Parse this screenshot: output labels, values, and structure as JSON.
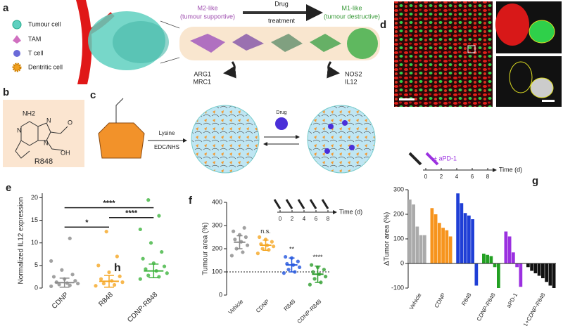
{
  "panels": {
    "letters": [
      "a",
      "b",
      "c",
      "d",
      "e",
      "f",
      "g"
    ],
    "a": {
      "legend": [
        "Tumour cell",
        "TAM",
        "T cell",
        "Dentritic cell"
      ],
      "m2": [
        "M2-like",
        "(tumour supportive)"
      ],
      "drug": [
        "Drug",
        "treatment"
      ],
      "m1": [
        "M1-like",
        "(tumour destructive)"
      ],
      "m2_markers": [
        "ARG1",
        "MRC1"
      ],
      "m1_markers": [
        "NOS2",
        "IL12"
      ]
    },
    "b": {
      "atoms": [
        "NH2",
        "N",
        "N",
        "N",
        "O",
        "OH"
      ],
      "name": "R848"
    },
    "c": {
      "reagents": [
        "Lysine",
        "EDC/NHS"
      ],
      "drug": "Drug"
    }
  },
  "chart_data": [
    {
      "type": "strip",
      "ylabel": "Normalized IL12 expression",
      "categories": [
        "CDNP",
        "R848",
        "CDNP-R848"
      ],
      "colors": [
        "#8a8a8a",
        "#f5a623",
        "#3fb43f"
      ],
      "points": [
        [
          0.4,
          0.6,
          0.8,
          1,
          1.1,
          1.3,
          1.6,
          2,
          2.5,
          3,
          4,
          6,
          11
        ],
        [
          0.5,
          0.7,
          1,
          1.3,
          1.6,
          2,
          2.6,
          3.5,
          5,
          7,
          12.5
        ],
        [
          2,
          2.5,
          2.8,
          3.3,
          3.8,
          4.2,
          4.8,
          5.5,
          6.5,
          8,
          10,
          13,
          16,
          19.5
        ]
      ],
      "values": [
        1.2,
        1.5,
        3.8
      ],
      "errors": [
        1,
        1.3,
        1.5
      ],
      "ylim": [
        0,
        21
      ],
      "yticks": [
        0,
        5,
        10,
        15,
        20
      ],
      "annotations": [
        "****",
        "*",
        "****",
        "h"
      ]
    },
    {
      "type": "strip",
      "ylabel": "Tumour area (%)",
      "categories": [
        "Vehicle",
        "CDNP",
        "R848",
        "CDNP-R848"
      ],
      "colors": [
        "#8a8a8a",
        "#f5a623",
        "#2255dd",
        "#2e9e2e"
      ],
      "points": [
        [
          170,
          185,
          200,
          215,
          230,
          240,
          250,
          260,
          275,
          290
        ],
        [
          180,
          195,
          200,
          210,
          215,
          220,
          230,
          240,
          250
        ],
        [
          95,
          100,
          110,
          120,
          130,
          135,
          145,
          160,
          165
        ],
        [
          45,
          55,
          70,
          80,
          90,
          100,
          110,
          120,
          130
        ]
      ],
      "values": [
        228,
        215,
        130,
        90
      ],
      "errors": [
        28,
        22,
        30,
        35
      ],
      "ylim": [
        0,
        400
      ],
      "yticks": [
        0,
        100,
        200,
        300,
        400
      ],
      "refline": 100,
      "annotations": [
        "n.s.",
        "**",
        "****"
      ],
      "timeline": {
        "ticks": [
          0,
          2,
          4,
          6,
          8
        ],
        "label": "Time (d)"
      }
    },
    {
      "type": "waterfall",
      "ylabel": "ΔTumor area (%)",
      "series": [
        {
          "name": "Vehicle",
          "color": "#aaaaaa",
          "values": [
            260,
            240,
            150,
            115,
            115
          ]
        },
        {
          "name": "CDNP",
          "color": "#f7941d",
          "values": [
            225,
            200,
            165,
            145,
            135,
            110
          ]
        },
        {
          "name": "R848",
          "color": "#1f3fd6",
          "values": [
            285,
            245,
            205,
            195,
            180,
            -90
          ]
        },
        {
          "name": "CDNP-R848",
          "color": "#22a022",
          "values": [
            40,
            35,
            30,
            -15,
            -100
          ]
        },
        {
          "name": "aPD-1",
          "color": "#9b30e0",
          "values": [
            130,
            110,
            45,
            -15,
            -95
          ]
        },
        {
          "name": "aPD-1+CDNP-R848",
          "color": "#111111",
          "values": [
            -15,
            -30,
            -40,
            -50,
            -60,
            -75,
            -90,
            -100
          ]
        }
      ],
      "ylim": [
        -100,
        300
      ],
      "yticks": [
        -100,
        0,
        100,
        200,
        300
      ],
      "timeline": {
        "ticks": [
          0,
          2,
          4,
          6,
          8
        ],
        "label": "Time (d)",
        "treatment": "± aPD-1"
      }
    }
  ]
}
